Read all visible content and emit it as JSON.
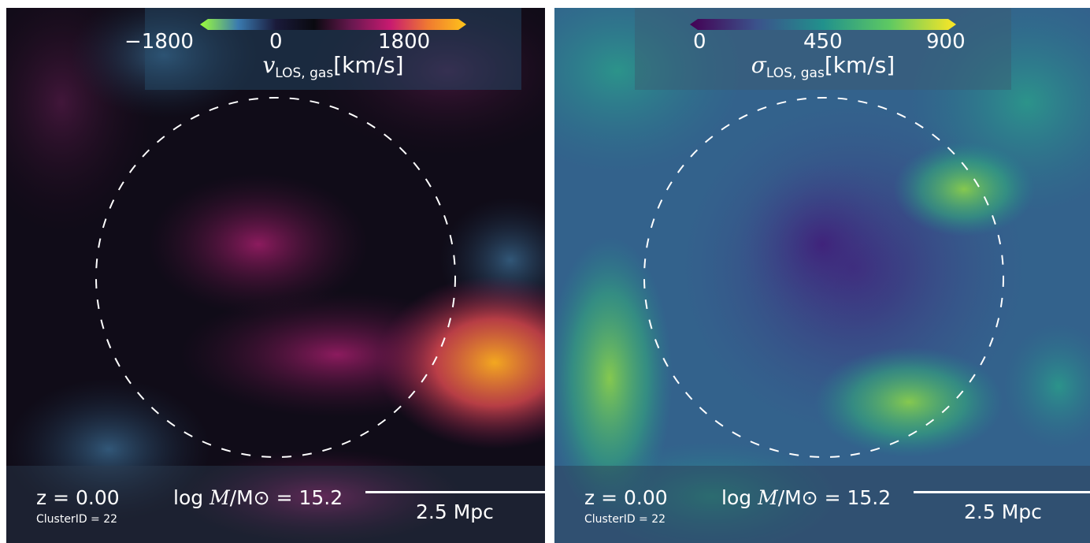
{
  "panels": [
    {
      "id": "left",
      "colorbar": {
        "tick_min": "−1800",
        "tick_mid": "0",
        "tick_max": "1800",
        "symbol": "v",
        "subscript": "LOS, gas",
        "unit": "[km/s]",
        "colors": [
          "#9dff3a",
          "#3a7ab0",
          "#1a1a3a",
          "#0a0a10",
          "#6a1850",
          "#c81a70",
          "#f07a30",
          "#ffc41a"
        ]
      },
      "footer": {
        "redshift": "z = 0.00",
        "cluster_id": "ClusterID = 22",
        "mass_prefix": "log",
        "mass_symbol": "M",
        "mass_suffix": "/M⊙ = 15.2",
        "scale": "2.5 Mpc"
      }
    },
    {
      "id": "right",
      "colorbar": {
        "tick_min": "0",
        "tick_mid": "450",
        "tick_max": "900",
        "symbol": "σ",
        "subscript": "LOS, gas",
        "unit": "[km/s]",
        "colors": [
          "#440154",
          "#3b528b",
          "#21918c",
          "#5ec962",
          "#fde725"
        ]
      },
      "footer": {
        "redshift": "z = 0.00",
        "cluster_id": "ClusterID = 22",
        "mass_prefix": "log",
        "mass_symbol": "M",
        "mass_suffix": "/M⊙ = 15.2",
        "scale": "2.5 Mpc"
      }
    }
  ]
}
